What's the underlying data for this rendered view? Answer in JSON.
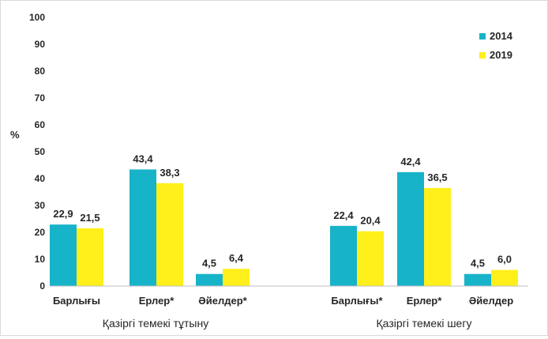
{
  "chart_data": {
    "type": "bar",
    "ylabel": "%",
    "ylim": [
      0,
      100
    ],
    "yticks": [
      "0",
      "10",
      "20",
      "30",
      "40",
      "50",
      "60",
      "70",
      "80",
      "90",
      "100"
    ],
    "legend_position": "top-right",
    "grid": false,
    "groups": [
      {
        "label": "Қазіргі темекі тұтыну",
        "categories": [
          "Барлығы",
          "Ерлер*",
          "Әйелдер*"
        ]
      },
      {
        "label": "Қазіргі темекі шегу",
        "categories": [
          "Барлығы*",
          "Ерлер*",
          "Әйелдер"
        ]
      }
    ],
    "series": [
      {
        "name": "2014",
        "color": "#17b3c9",
        "values": [
          22.9,
          43.4,
          4.5,
          22.4,
          42.4,
          4.5
        ],
        "labels": [
          "22,9",
          "43,4",
          "4,5",
          "22,4",
          "42,4",
          "4,5"
        ]
      },
      {
        "name": "2019",
        "color": "#ffef1a",
        "values": [
          21.5,
          38.3,
          6.4,
          20.4,
          36.5,
          6.0
        ],
        "labels": [
          "21,5",
          "38,3",
          "6,4",
          "20,4",
          "36,5",
          "6,0"
        ]
      }
    ]
  }
}
